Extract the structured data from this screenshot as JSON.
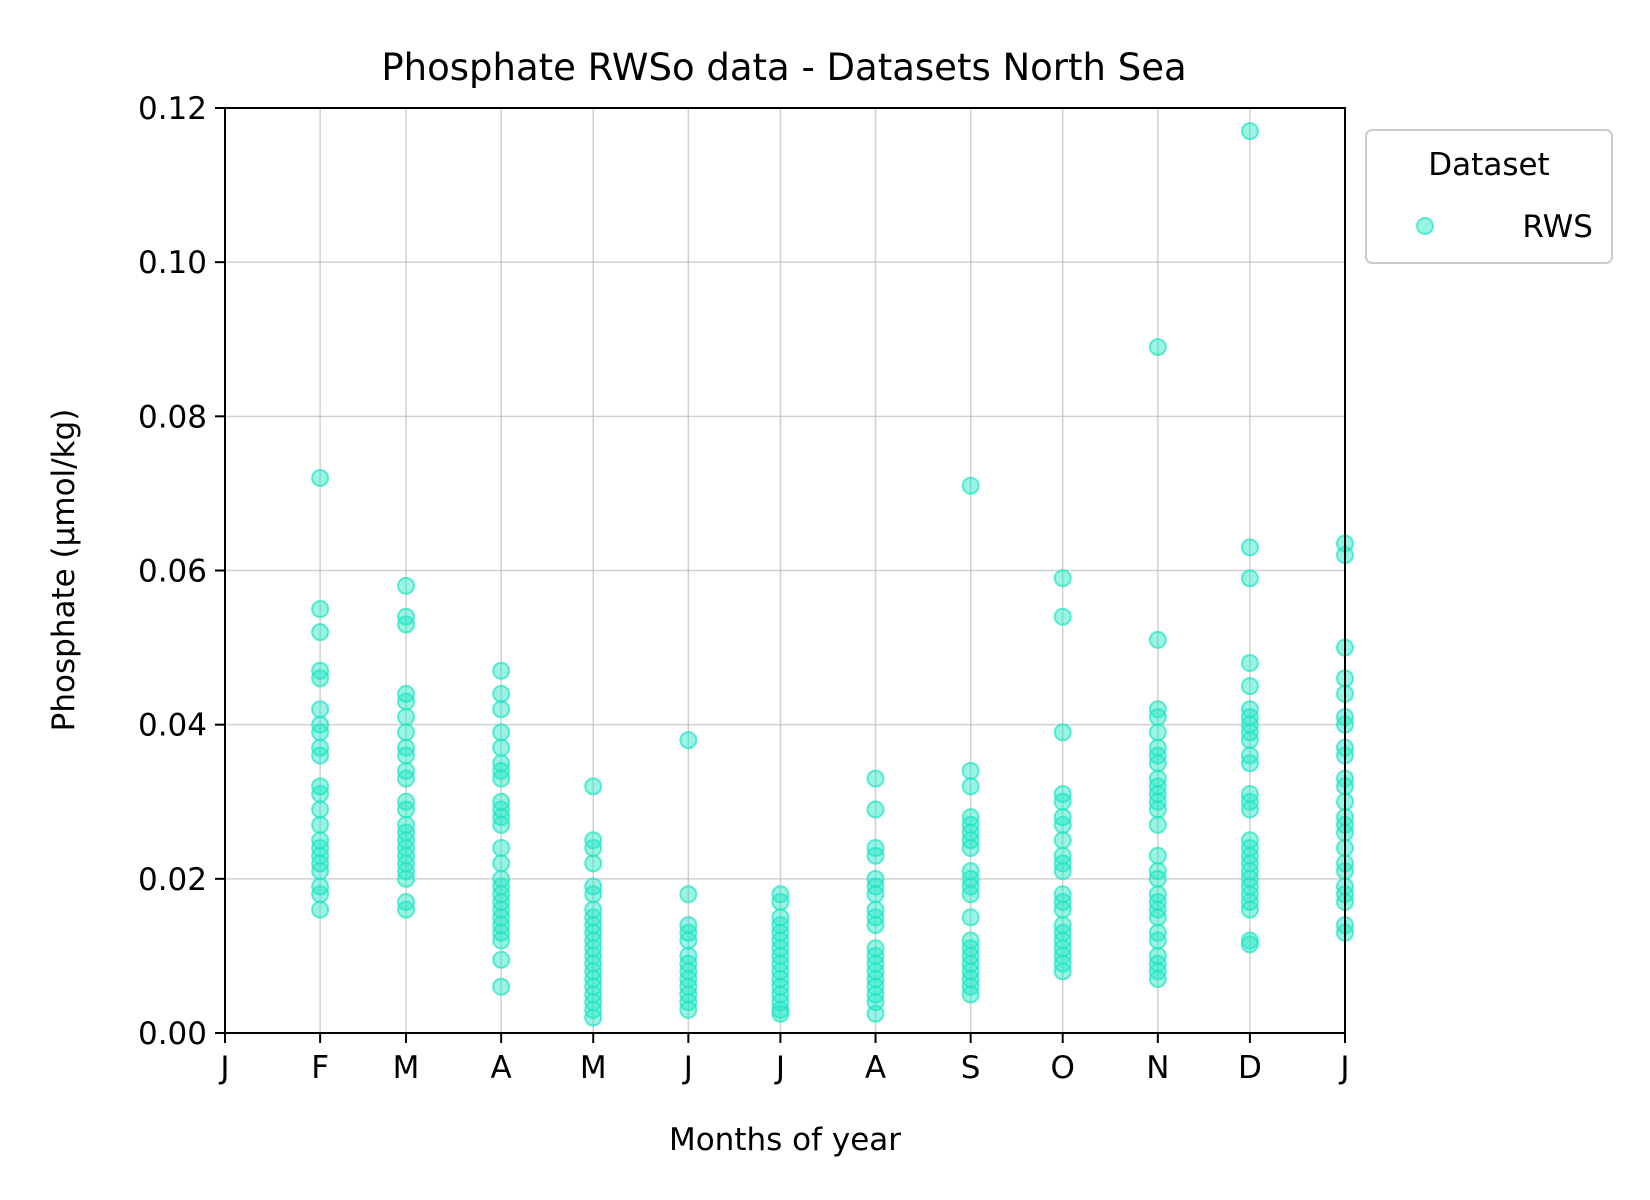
{
  "chart_data": {
    "type": "scatter",
    "title": "Phosphate RWSo data - Datasets North Sea",
    "xlabel": "Months of year",
    "ylabel": "Phosphate (µmol/kg)",
    "xlim": [
      0,
      365
    ],
    "ylim": [
      0,
      0.12
    ],
    "x_ticks": [
      {
        "x": 0,
        "label": "J"
      },
      {
        "x": 31,
        "label": "F"
      },
      {
        "x": 59,
        "label": "M"
      },
      {
        "x": 90,
        "label": "A"
      },
      {
        "x": 120,
        "label": "M"
      },
      {
        "x": 151,
        "label": "J"
      },
      {
        "x": 181,
        "label": "J"
      },
      {
        "x": 212,
        "label": "A"
      },
      {
        "x": 243,
        "label": "S"
      },
      {
        "x": 273,
        "label": "O"
      },
      {
        "x": 304,
        "label": "N"
      },
      {
        "x": 334,
        "label": "D"
      },
      {
        "x": 365,
        "label": "J"
      }
    ],
    "y_ticks": [
      {
        "y": 0.0,
        "label": "0.00"
      },
      {
        "y": 0.02,
        "label": "0.02"
      },
      {
        "y": 0.04,
        "label": "0.04"
      },
      {
        "y": 0.06,
        "label": "0.06"
      },
      {
        "y": 0.08,
        "label": "0.08"
      },
      {
        "y": 0.1,
        "label": "0.10"
      },
      {
        "y": 0.12,
        "label": "0.12"
      }
    ],
    "grid": true,
    "legend": {
      "title": "Dataset",
      "placement": "outside-top-right"
    },
    "series": [
      {
        "name": "RWS",
        "color": "#1ee6c4",
        "points": [
          {
            "x": 31,
            "y": 0.072
          },
          {
            "x": 31,
            "y": 0.055
          },
          {
            "x": 31,
            "y": 0.052
          },
          {
            "x": 31,
            "y": 0.047
          },
          {
            "x": 31,
            "y": 0.046
          },
          {
            "x": 31,
            "y": 0.042
          },
          {
            "x": 31,
            "y": 0.04
          },
          {
            "x": 31,
            "y": 0.039
          },
          {
            "x": 31,
            "y": 0.037
          },
          {
            "x": 31,
            "y": 0.036
          },
          {
            "x": 31,
            "y": 0.032
          },
          {
            "x": 31,
            "y": 0.031
          },
          {
            "x": 31,
            "y": 0.029
          },
          {
            "x": 31,
            "y": 0.027
          },
          {
            "x": 31,
            "y": 0.025
          },
          {
            "x": 31,
            "y": 0.024
          },
          {
            "x": 31,
            "y": 0.023
          },
          {
            "x": 31,
            "y": 0.022
          },
          {
            "x": 31,
            "y": 0.021
          },
          {
            "x": 31,
            "y": 0.019
          },
          {
            "x": 31,
            "y": 0.018
          },
          {
            "x": 31,
            "y": 0.016
          },
          {
            "x": 59,
            "y": 0.058
          },
          {
            "x": 59,
            "y": 0.054
          },
          {
            "x": 59,
            "y": 0.053
          },
          {
            "x": 59,
            "y": 0.044
          },
          {
            "x": 59,
            "y": 0.043
          },
          {
            "x": 59,
            "y": 0.041
          },
          {
            "x": 59,
            "y": 0.039
          },
          {
            "x": 59,
            "y": 0.037
          },
          {
            "x": 59,
            "y": 0.036
          },
          {
            "x": 59,
            "y": 0.034
          },
          {
            "x": 59,
            "y": 0.033
          },
          {
            "x": 59,
            "y": 0.03
          },
          {
            "x": 59,
            "y": 0.029
          },
          {
            "x": 59,
            "y": 0.027
          },
          {
            "x": 59,
            "y": 0.026
          },
          {
            "x": 59,
            "y": 0.025
          },
          {
            "x": 59,
            "y": 0.024
          },
          {
            "x": 59,
            "y": 0.023
          },
          {
            "x": 59,
            "y": 0.022
          },
          {
            "x": 59,
            "y": 0.021
          },
          {
            "x": 59,
            "y": 0.02
          },
          {
            "x": 59,
            "y": 0.017
          },
          {
            "x": 59,
            "y": 0.016
          },
          {
            "x": 90,
            "y": 0.047
          },
          {
            "x": 90,
            "y": 0.044
          },
          {
            "x": 90,
            "y": 0.042
          },
          {
            "x": 90,
            "y": 0.039
          },
          {
            "x": 90,
            "y": 0.037
          },
          {
            "x": 90,
            "y": 0.035
          },
          {
            "x": 90,
            "y": 0.034
          },
          {
            "x": 90,
            "y": 0.033
          },
          {
            "x": 90,
            "y": 0.03
          },
          {
            "x": 90,
            "y": 0.029
          },
          {
            "x": 90,
            "y": 0.028
          },
          {
            "x": 90,
            "y": 0.027
          },
          {
            "x": 90,
            "y": 0.024
          },
          {
            "x": 90,
            "y": 0.022
          },
          {
            "x": 90,
            "y": 0.02
          },
          {
            "x": 90,
            "y": 0.019
          },
          {
            "x": 90,
            "y": 0.018
          },
          {
            "x": 90,
            "y": 0.017
          },
          {
            "x": 90,
            "y": 0.016
          },
          {
            "x": 90,
            "y": 0.015
          },
          {
            "x": 90,
            "y": 0.014
          },
          {
            "x": 90,
            "y": 0.013
          },
          {
            "x": 90,
            "y": 0.012
          },
          {
            "x": 90,
            "y": 0.0095
          },
          {
            "x": 90,
            "y": 0.006
          },
          {
            "x": 120,
            "y": 0.032
          },
          {
            "x": 120,
            "y": 0.025
          },
          {
            "x": 120,
            "y": 0.024
          },
          {
            "x": 120,
            "y": 0.022
          },
          {
            "x": 120,
            "y": 0.019
          },
          {
            "x": 120,
            "y": 0.018
          },
          {
            "x": 120,
            "y": 0.016
          },
          {
            "x": 120,
            "y": 0.015
          },
          {
            "x": 120,
            "y": 0.014
          },
          {
            "x": 120,
            "y": 0.013
          },
          {
            "x": 120,
            "y": 0.012
          },
          {
            "x": 120,
            "y": 0.011
          },
          {
            "x": 120,
            "y": 0.01
          },
          {
            "x": 120,
            "y": 0.009
          },
          {
            "x": 120,
            "y": 0.008
          },
          {
            "x": 120,
            "y": 0.007
          },
          {
            "x": 120,
            "y": 0.006
          },
          {
            "x": 120,
            "y": 0.005
          },
          {
            "x": 120,
            "y": 0.004
          },
          {
            "x": 120,
            "y": 0.003
          },
          {
            "x": 120,
            "y": 0.002
          },
          {
            "x": 151,
            "y": 0.038
          },
          {
            "x": 151,
            "y": 0.018
          },
          {
            "x": 151,
            "y": 0.014
          },
          {
            "x": 151,
            "y": 0.013
          },
          {
            "x": 151,
            "y": 0.012
          },
          {
            "x": 151,
            "y": 0.01
          },
          {
            "x": 151,
            "y": 0.009
          },
          {
            "x": 151,
            "y": 0.008
          },
          {
            "x": 151,
            "y": 0.007
          },
          {
            "x": 151,
            "y": 0.006
          },
          {
            "x": 151,
            "y": 0.005
          },
          {
            "x": 151,
            "y": 0.004
          },
          {
            "x": 151,
            "y": 0.003
          },
          {
            "x": 181,
            "y": 0.018
          },
          {
            "x": 181,
            "y": 0.017
          },
          {
            "x": 181,
            "y": 0.015
          },
          {
            "x": 181,
            "y": 0.014
          },
          {
            "x": 181,
            "y": 0.013
          },
          {
            "x": 181,
            "y": 0.012
          },
          {
            "x": 181,
            "y": 0.011
          },
          {
            "x": 181,
            "y": 0.01
          },
          {
            "x": 181,
            "y": 0.009
          },
          {
            "x": 181,
            "y": 0.008
          },
          {
            "x": 181,
            "y": 0.007
          },
          {
            "x": 181,
            "y": 0.006
          },
          {
            "x": 181,
            "y": 0.005
          },
          {
            "x": 181,
            "y": 0.004
          },
          {
            "x": 181,
            "y": 0.003
          },
          {
            "x": 181,
            "y": 0.0025
          },
          {
            "x": 212,
            "y": 0.033
          },
          {
            "x": 212,
            "y": 0.029
          },
          {
            "x": 212,
            "y": 0.024
          },
          {
            "x": 212,
            "y": 0.023
          },
          {
            "x": 212,
            "y": 0.02
          },
          {
            "x": 212,
            "y": 0.019
          },
          {
            "x": 212,
            "y": 0.018
          },
          {
            "x": 212,
            "y": 0.016
          },
          {
            "x": 212,
            "y": 0.015
          },
          {
            "x": 212,
            "y": 0.014
          },
          {
            "x": 212,
            "y": 0.011
          },
          {
            "x": 212,
            "y": 0.01
          },
          {
            "x": 212,
            "y": 0.009
          },
          {
            "x": 212,
            "y": 0.008
          },
          {
            "x": 212,
            "y": 0.007
          },
          {
            "x": 212,
            "y": 0.006
          },
          {
            "x": 212,
            "y": 0.005
          },
          {
            "x": 212,
            "y": 0.004
          },
          {
            "x": 212,
            "y": 0.0025
          },
          {
            "x": 243,
            "y": 0.071
          },
          {
            "x": 243,
            "y": 0.034
          },
          {
            "x": 243,
            "y": 0.032
          },
          {
            "x": 243,
            "y": 0.028
          },
          {
            "x": 243,
            "y": 0.027
          },
          {
            "x": 243,
            "y": 0.026
          },
          {
            "x": 243,
            "y": 0.025
          },
          {
            "x": 243,
            "y": 0.024
          },
          {
            "x": 243,
            "y": 0.021
          },
          {
            "x": 243,
            "y": 0.02
          },
          {
            "x": 243,
            "y": 0.019
          },
          {
            "x": 243,
            "y": 0.018
          },
          {
            "x": 243,
            "y": 0.015
          },
          {
            "x": 243,
            "y": 0.012
          },
          {
            "x": 243,
            "y": 0.011
          },
          {
            "x": 243,
            "y": 0.01
          },
          {
            "x": 243,
            "y": 0.009
          },
          {
            "x": 243,
            "y": 0.008
          },
          {
            "x": 243,
            "y": 0.007
          },
          {
            "x": 243,
            "y": 0.006
          },
          {
            "x": 243,
            "y": 0.005
          },
          {
            "x": 273,
            "y": 0.059
          },
          {
            "x": 273,
            "y": 0.054
          },
          {
            "x": 273,
            "y": 0.039
          },
          {
            "x": 273,
            "y": 0.031
          },
          {
            "x": 273,
            "y": 0.03
          },
          {
            "x": 273,
            "y": 0.028
          },
          {
            "x": 273,
            "y": 0.027
          },
          {
            "x": 273,
            "y": 0.025
          },
          {
            "x": 273,
            "y": 0.023
          },
          {
            "x": 273,
            "y": 0.022
          },
          {
            "x": 273,
            "y": 0.021
          },
          {
            "x": 273,
            "y": 0.018
          },
          {
            "x": 273,
            "y": 0.017
          },
          {
            "x": 273,
            "y": 0.016
          },
          {
            "x": 273,
            "y": 0.014
          },
          {
            "x": 273,
            "y": 0.013
          },
          {
            "x": 273,
            "y": 0.012
          },
          {
            "x": 273,
            "y": 0.011
          },
          {
            "x": 273,
            "y": 0.01
          },
          {
            "x": 273,
            "y": 0.009
          },
          {
            "x": 273,
            "y": 0.008
          },
          {
            "x": 304,
            "y": 0.089
          },
          {
            "x": 304,
            "y": 0.051
          },
          {
            "x": 304,
            "y": 0.042
          },
          {
            "x": 304,
            "y": 0.041
          },
          {
            "x": 304,
            "y": 0.039
          },
          {
            "x": 304,
            "y": 0.037
          },
          {
            "x": 304,
            "y": 0.036
          },
          {
            "x": 304,
            "y": 0.035
          },
          {
            "x": 304,
            "y": 0.033
          },
          {
            "x": 304,
            "y": 0.032
          },
          {
            "x": 304,
            "y": 0.031
          },
          {
            "x": 304,
            "y": 0.03
          },
          {
            "x": 304,
            "y": 0.029
          },
          {
            "x": 304,
            "y": 0.027
          },
          {
            "x": 304,
            "y": 0.023
          },
          {
            "x": 304,
            "y": 0.021
          },
          {
            "x": 304,
            "y": 0.02
          },
          {
            "x": 304,
            "y": 0.018
          },
          {
            "x": 304,
            "y": 0.017
          },
          {
            "x": 304,
            "y": 0.016
          },
          {
            "x": 304,
            "y": 0.015
          },
          {
            "x": 304,
            "y": 0.013
          },
          {
            "x": 304,
            "y": 0.012
          },
          {
            "x": 304,
            "y": 0.01
          },
          {
            "x": 304,
            "y": 0.009
          },
          {
            "x": 304,
            "y": 0.008
          },
          {
            "x": 304,
            "y": 0.007
          },
          {
            "x": 334,
            "y": 0.117
          },
          {
            "x": 334,
            "y": 0.063
          },
          {
            "x": 334,
            "y": 0.059
          },
          {
            "x": 334,
            "y": 0.048
          },
          {
            "x": 334,
            "y": 0.045
          },
          {
            "x": 334,
            "y": 0.042
          },
          {
            "x": 334,
            "y": 0.041
          },
          {
            "x": 334,
            "y": 0.04
          },
          {
            "x": 334,
            "y": 0.039
          },
          {
            "x": 334,
            "y": 0.038
          },
          {
            "x": 334,
            "y": 0.036
          },
          {
            "x": 334,
            "y": 0.035
          },
          {
            "x": 334,
            "y": 0.031
          },
          {
            "x": 334,
            "y": 0.03
          },
          {
            "x": 334,
            "y": 0.029
          },
          {
            "x": 334,
            "y": 0.025
          },
          {
            "x": 334,
            "y": 0.024
          },
          {
            "x": 334,
            "y": 0.023
          },
          {
            "x": 334,
            "y": 0.022
          },
          {
            "x": 334,
            "y": 0.021
          },
          {
            "x": 334,
            "y": 0.02
          },
          {
            "x": 334,
            "y": 0.019
          },
          {
            "x": 334,
            "y": 0.018
          },
          {
            "x": 334,
            "y": 0.017
          },
          {
            "x": 334,
            "y": 0.016
          },
          {
            "x": 334,
            "y": 0.012
          },
          {
            "x": 334,
            "y": 0.0115
          },
          {
            "x": 365,
            "y": 0.0635
          },
          {
            "x": 365,
            "y": 0.062
          },
          {
            "x": 365,
            "y": 0.05
          },
          {
            "x": 365,
            "y": 0.046
          },
          {
            "x": 365,
            "y": 0.044
          },
          {
            "x": 365,
            "y": 0.041
          },
          {
            "x": 365,
            "y": 0.04
          },
          {
            "x": 365,
            "y": 0.037
          },
          {
            "x": 365,
            "y": 0.036
          },
          {
            "x": 365,
            "y": 0.033
          },
          {
            "x": 365,
            "y": 0.032
          },
          {
            "x": 365,
            "y": 0.03
          },
          {
            "x": 365,
            "y": 0.028
          },
          {
            "x": 365,
            "y": 0.027
          },
          {
            "x": 365,
            "y": 0.026
          },
          {
            "x": 365,
            "y": 0.024
          },
          {
            "x": 365,
            "y": 0.022
          },
          {
            "x": 365,
            "y": 0.021
          },
          {
            "x": 365,
            "y": 0.019
          },
          {
            "x": 365,
            "y": 0.018
          },
          {
            "x": 365,
            "y": 0.017
          },
          {
            "x": 365,
            "y": 0.014
          },
          {
            "x": 365,
            "y": 0.013
          }
        ]
      }
    ]
  }
}
